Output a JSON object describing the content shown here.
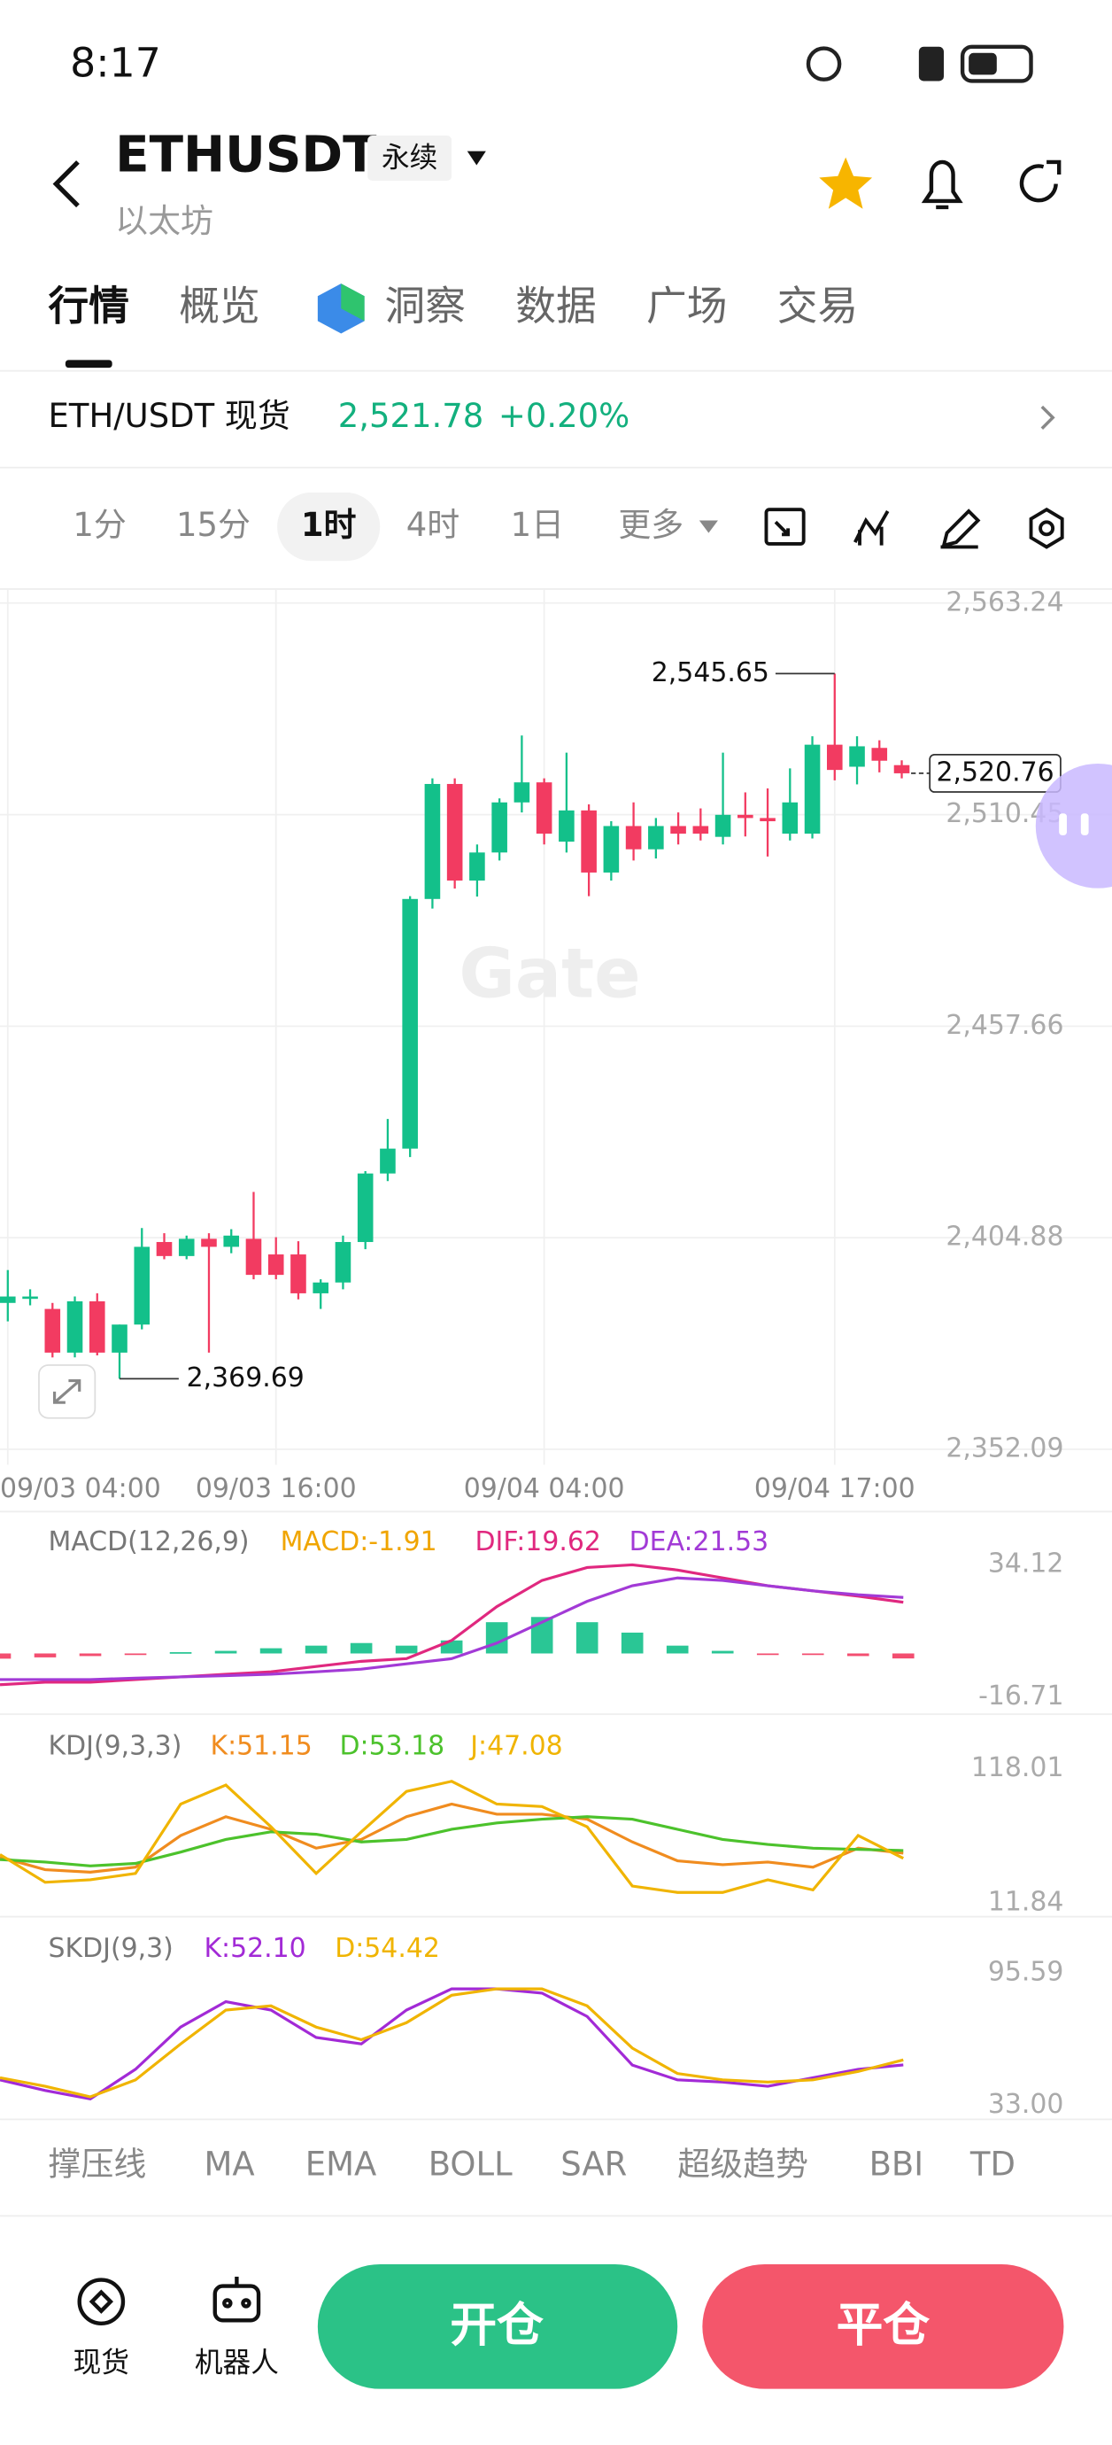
{
  "status_bar": {
    "time": "8:17"
  },
  "header": {
    "symbol": "ETHUSDT",
    "contract_tag": "永续",
    "name": "以太坊"
  },
  "tabs": [
    "行情",
    "概览",
    "洞察",
    "数据",
    "广场",
    "交易"
  ],
  "ticker": {
    "pair": "ETH/USDT 现货",
    "price": "2,521.78",
    "change": "+0.20%"
  },
  "intervals": [
    "1分",
    "15分",
    "1时",
    "4时",
    "1日",
    "更多"
  ],
  "chart_data": [
    {
      "type": "candlestick",
      "watermark": "Gate",
      "categories": [
        "09/03 04:00",
        null,
        null,
        null,
        null,
        null,
        null,
        null,
        null,
        null,
        null,
        null,
        "09/03 16:00",
        null,
        null,
        null,
        null,
        null,
        null,
        null,
        null,
        null,
        null,
        null,
        "09/04 04:00",
        null,
        null,
        null,
        null,
        null,
        null,
        null,
        null,
        null,
        null,
        null,
        null,
        "09/04 17:00",
        null,
        null,
        null
      ],
      "open": [
        2388.6,
        2389.8,
        2387.1,
        2376.2,
        2389.0,
        2376.2,
        2383.2,
        2403.8,
        2400.3,
        2404.6,
        2402.6,
        2404.6,
        2400.7,
        2400.7,
        2391.0,
        2393.7,
        2403.8,
        2420.9,
        2427.1,
        2489.4,
        2518.1,
        2494.0,
        2501.0,
        2513.5,
        2518.5,
        2503.7,
        2511.5,
        2496.0,
        2507.6,
        2501.8,
        2507.6,
        2507.6,
        2504.9,
        2510.4,
        2509.6,
        2505.7,
        2505.7,
        2527.9,
        2522.4,
        2527.1,
        2522.8
      ],
      "high": [
        2396.8,
        2392,
        2388.6,
        2390.2,
        2391,
        2383.2,
        2407.3,
        2406,
        2405.4,
        2406,
        2407,
        2416.3,
        2405,
        2404,
        2394.5,
        2405.4,
        2421.5,
        2434.5,
        2490.1,
        2519.5,
        2519.5,
        2503,
        2514.5,
        2530.2,
        2519.5,
        2525.9,
        2513,
        2508.8,
        2513.5,
        2509.6,
        2511,
        2512,
        2525.9,
        2516,
        2517,
        2522,
        2530,
        2545.65,
        2530,
        2529,
        2524
      ],
      "low": [
        2384.0,
        2388,
        2375,
        2375,
        2375.5,
        2369.69,
        2382,
        2399.5,
        2399.5,
        2376.2,
        2401,
        2394.5,
        2394.5,
        2389.5,
        2387.1,
        2392,
        2402,
        2419,
        2425,
        2487,
        2492,
        2490,
        2499,
        2511,
        2503,
        2501,
        2490.1,
        2494,
        2499,
        2499.5,
        2503,
        2504,
        2503,
        2505,
        2500,
        2504,
        2504.5,
        2519,
        2518,
        2521,
        2519.5
      ],
      "close": [
        2390.2,
        2390.2,
        2376.2,
        2389.0,
        2376.2,
        2383.2,
        2402.6,
        2400.3,
        2404.6,
        2402.6,
        2405.4,
        2395.6,
        2395.6,
        2391.0,
        2393.7,
        2403.8,
        2420.9,
        2427.1,
        2489.4,
        2518.1,
        2494.0,
        2501.0,
        2513.5,
        2518.5,
        2505.7,
        2511.5,
        2496.0,
        2507.6,
        2501.8,
        2507.6,
        2505.7,
        2505.7,
        2510.4,
        2509.6,
        2508.8,
        2513.5,
        2527.9,
        2521.6,
        2527.5,
        2523.9,
        2520.76
      ],
      "up_color": "#13c08a",
      "down_color": "#f23b61",
      "ylim": [
        2352.09,
        2563.24
      ],
      "yticks": [
        {
          "value": 2563.24,
          "label": "2,563.24"
        },
        {
          "value": 2510.45,
          "label": "2,510.45"
        },
        {
          "value": 2457.66,
          "label": "2,457.66"
        },
        {
          "value": 2404.88,
          "label": "2,404.88"
        },
        {
          "value": 2352.09,
          "label": "2,352.09"
        }
      ],
      "annotations": [
        {
          "value": 2545.65,
          "label": "2,545.65"
        },
        {
          "value": 2369.69,
          "label": "2,369.69"
        }
      ],
      "last_price": {
        "value": 2520.76,
        "label": "2,520.76"
      },
      "grid": true
    },
    {
      "type": "macd",
      "title": "MACD(12,26,9)",
      "ylim": [
        -16.71,
        34.12
      ],
      "yticks": [
        34.12,
        -16.71
      ],
      "up_color": "#13c08a",
      "down_color": "#f23b61",
      "series": [
        {
          "name": "MACD:-1.91",
          "color": "#f0a500",
          "values": [
            -2,
            -1.5,
            -1,
            -0.5,
            0.5,
            1,
            2,
            3,
            4,
            3,
            5,
            12,
            14,
            12,
            8,
            3,
            1,
            -0.3,
            -0.5,
            -1,
            -1.91
          ]
        },
        {
          "name": "DIF:19.62",
          "color": "#e0287f",
          "values": [
            -12,
            -11,
            -11,
            -10,
            -9,
            -8,
            -7,
            -5,
            -3,
            -2,
            5,
            18,
            28,
            33,
            34,
            32,
            29,
            26,
            24,
            22,
            19.62
          ]
        },
        {
          "name": "DEA:21.53",
          "color": "#a23ad6",
          "values": [
            -10,
            -10,
            -10,
            -9.5,
            -9,
            -8.5,
            -8,
            -7,
            -6,
            -4,
            -2,
            4,
            12,
            20,
            26,
            29,
            28,
            26,
            24,
            22.5,
            21.53
          ]
        }
      ]
    },
    {
      "type": "line",
      "title": "KDJ(9,3,3)",
      "ylim": [
        11.84,
        118.01
      ],
      "yticks": [
        118.01,
        11.84
      ],
      "series": [
        {
          "name": "K:51.15",
          "color": "#f08c1f",
          "values": [
            48,
            38,
            36,
            40,
            65,
            80,
            70,
            55,
            62,
            80,
            90,
            82,
            82,
            78,
            60,
            45,
            42,
            44,
            40,
            55,
            51.15
          ]
        },
        {
          "name": "D:53.18",
          "color": "#4cc22c",
          "values": [
            46,
            44,
            41,
            43,
            52,
            62,
            68,
            66,
            60,
            62,
            70,
            75,
            78,
            80,
            78,
            70,
            62,
            58,
            55,
            54,
            53.18
          ]
        },
        {
          "name": "J:47.08",
          "color": "#f0b400",
          "values": [
            50,
            28,
            30,
            35,
            90,
            105,
            72,
            35,
            68,
            100,
            108,
            90,
            88,
            72,
            25,
            20,
            20,
            30,
            22,
            65,
            47.08
          ]
        }
      ]
    },
    {
      "type": "line",
      "title": "SKDJ(9,3)",
      "ylim": [
        33.0,
        95.59
      ],
      "yticks": [
        {
          "value": 95.59,
          "label": "95.59"
        },
        {
          "value": 33.0,
          "label": "33.00"
        }
      ],
      "series": [
        {
          "name": "K:52.10",
          "color": "#a22ad6",
          "values": [
            45,
            40,
            36,
            50,
            70,
            82,
            78,
            65,
            62,
            78,
            88,
            88,
            86,
            75,
            52,
            45,
            44,
            42,
            46,
            50,
            52.1
          ]
        },
        {
          "name": "D:54.42",
          "color": "#f0b400",
          "values": [
            46,
            42,
            37,
            45,
            62,
            78,
            80,
            70,
            64,
            72,
            85,
            88,
            88,
            80,
            60,
            48,
            45,
            44,
            45,
            49,
            54.42
          ]
        }
      ]
    }
  ],
  "indicator_bar": [
    "撑压线",
    "MA",
    "EMA",
    "BOLL",
    "SAR",
    "超级趋势",
    "BBI",
    "TD"
  ],
  "bottom_bar": {
    "spot": "现货",
    "bot": "机器人",
    "open": "开仓",
    "close": "平仓"
  }
}
